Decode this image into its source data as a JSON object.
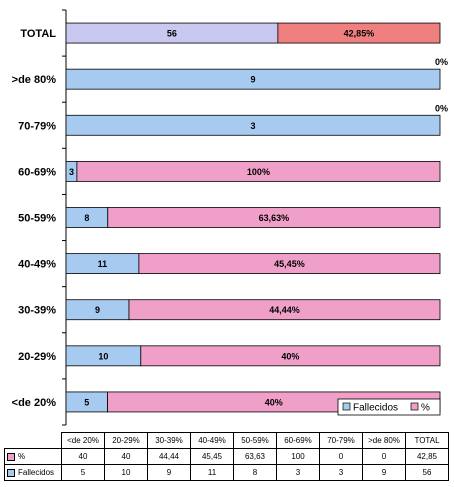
{
  "chart_data": {
    "type": "bar",
    "orientation": "horizontal",
    "stacked": "percent",
    "categories": [
      "TOTAL",
      ">de 80%",
      "70-79%",
      "60-69%",
      "50-59%",
      "40-49%",
      "30-39%",
      "20-29%",
      "<de 20%"
    ],
    "series": [
      {
        "name": "Fallecidos",
        "color": "#a6caf0",
        "values": [
          56,
          9,
          3,
          3,
          8,
          11,
          9,
          10,
          5
        ],
        "bar_labels": [
          "56",
          "9",
          "3",
          "3",
          "8",
          "11",
          "9",
          "10",
          "5"
        ]
      },
      {
        "name": "%",
        "color": "#f0a0c8",
        "values": [
          42.85,
          0,
          0,
          100,
          63.63,
          45.45,
          44.44,
          40,
          40
        ],
        "bar_labels": [
          "42,85%",
          "0%",
          "0%",
          "100%",
          "63,63%",
          "45,45%",
          "44,44%",
          "40%",
          "40%"
        ]
      }
    ],
    "special_colors": {
      "TOTAL": [
        "#c8c8f0",
        "#f08080"
      ]
    },
    "gridlines": false,
    "legend_position": "bottom-right"
  },
  "legend": [
    "Fallecidos",
    "%"
  ],
  "table": {
    "header": [
      "<de 20%",
      "20-29%",
      "30-39%",
      "40-49%",
      "50-59%",
      "60-69%",
      "70-79%",
      ">de 80%",
      "TOTAL"
    ],
    "rows": [
      {
        "label": "%",
        "color": "#f0a0c8",
        "values": [
          "40",
          "40",
          "44,44",
          "45,45",
          "63,63",
          "100",
          "0",
          "0",
          "42,85"
        ]
      },
      {
        "label": "Fallecidos",
        "color": "#a6caf0",
        "values": [
          "5",
          "10",
          "9",
          "11",
          "8",
          "3",
          "3",
          "9",
          "56"
        ]
      }
    ]
  }
}
